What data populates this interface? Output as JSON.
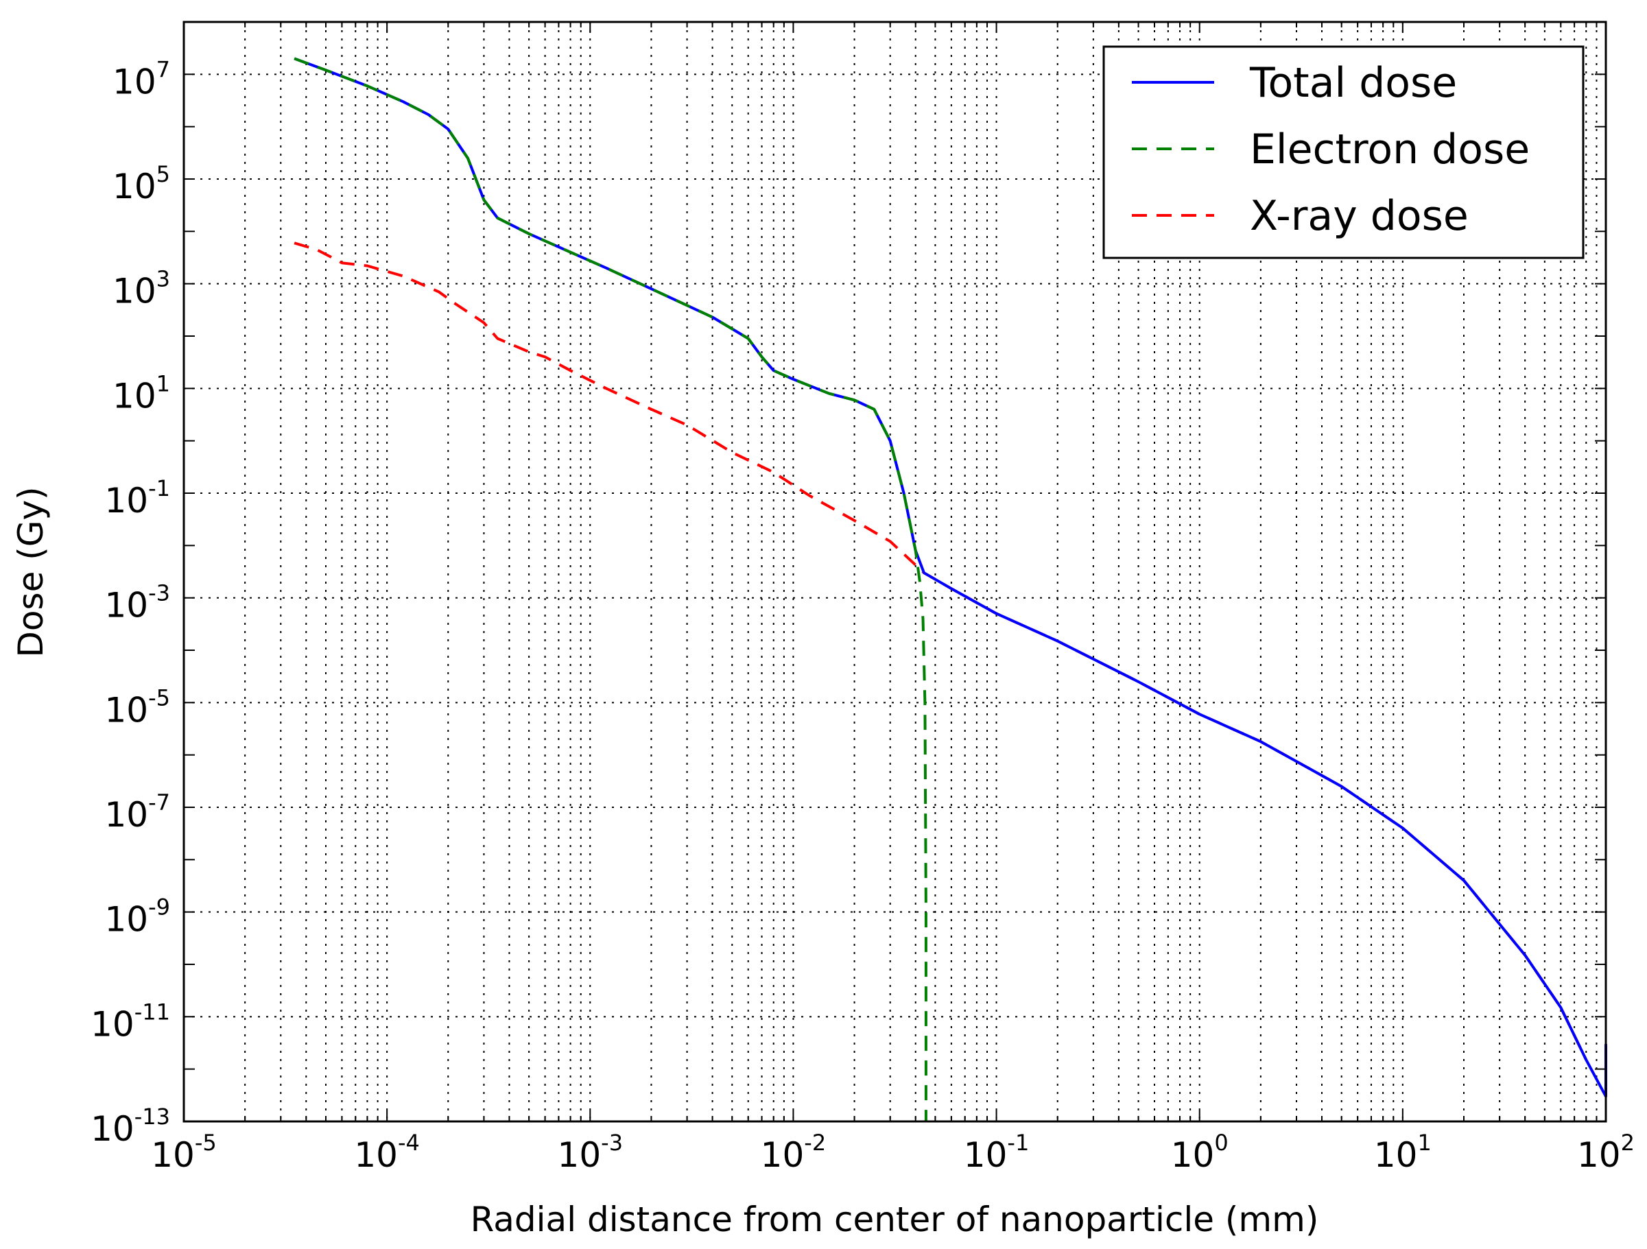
{
  "chart_data": {
    "type": "line",
    "title": "",
    "xlabel": "Radial distance from center of nanoparticle (mm)",
    "ylabel": "Dose (Gy)",
    "xscale": "log",
    "yscale": "log",
    "xlim": [
      1e-05,
      100
    ],
    "ylim": [
      1e-13,
      100000000.0
    ],
    "grid": true,
    "legend_position": "top-right",
    "x_ticks": [
      {
        "base": "10",
        "exp": "-5",
        "value": 1e-05
      },
      {
        "base": "10",
        "exp": "-4",
        "value": 0.0001
      },
      {
        "base": "10",
        "exp": "-3",
        "value": 0.001
      },
      {
        "base": "10",
        "exp": "-2",
        "value": 0.01
      },
      {
        "base": "10",
        "exp": "-1",
        "value": 0.1
      },
      {
        "base": "10",
        "exp": "0",
        "value": 1
      },
      {
        "base": "10",
        "exp": "1",
        "value": 10
      },
      {
        "base": "10",
        "exp": "2",
        "value": 100
      }
    ],
    "y_ticks": [
      {
        "base": "10",
        "exp": "7",
        "value": 10000000.0
      },
      {
        "base": "10",
        "exp": "5",
        "value": 100000.0
      },
      {
        "base": "10",
        "exp": "3",
        "value": 1000.0
      },
      {
        "base": "10",
        "exp": "1",
        "value": 10.0
      },
      {
        "base": "10",
        "exp": "-1",
        "value": 0.1
      },
      {
        "base": "10",
        "exp": "-3",
        "value": 0.001
      },
      {
        "base": "10",
        "exp": "-5",
        "value": 1e-05
      },
      {
        "base": "10",
        "exp": "-7",
        "value": 1e-07
      },
      {
        "base": "10",
        "exp": "-9",
        "value": 1e-09
      },
      {
        "base": "10",
        "exp": "-11",
        "value": 1e-11
      },
      {
        "base": "10",
        "exp": "-13",
        "value": 1e-13
      }
    ],
    "series": [
      {
        "name": "Total dose",
        "color": "#0000ff",
        "style": "solid",
        "points": [
          [
            3.5e-05,
            20000000.0
          ],
          [
            5e-05,
            12000000.0
          ],
          [
            8e-05,
            6000000.0
          ],
          [
            0.00012,
            3000000.0
          ],
          [
            0.00016,
            1700000.0
          ],
          [
            0.0002,
            900000.0
          ],
          [
            0.00025,
            250000.0
          ],
          [
            0.0003,
            40000.0
          ],
          [
            0.00035,
            18000.0
          ],
          [
            0.0005,
            9000.0
          ],
          [
            0.0008,
            4000.0
          ],
          [
            0.0012,
            2000.0
          ],
          [
            0.002,
            800.0
          ],
          [
            0.004,
            230.0
          ],
          [
            0.006,
            90.0
          ],
          [
            0.007,
            40.0
          ],
          [
            0.008,
            22.0
          ],
          [
            0.01,
            15.0
          ],
          [
            0.015,
            8
          ],
          [
            0.02,
            6
          ],
          [
            0.025,
            4
          ],
          [
            0.03,
            1
          ],
          [
            0.035,
            0.1
          ],
          [
            0.04,
            0.008
          ],
          [
            0.044,
            0.003
          ],
          [
            0.06,
            0.0015
          ],
          [
            0.1,
            0.0005
          ],
          [
            0.2,
            0.00015
          ],
          [
            0.5,
            2.5e-05
          ],
          [
            1,
            6e-06
          ],
          [
            2,
            1.8e-06
          ],
          [
            5,
            2.5e-07
          ],
          [
            10,
            4e-08
          ],
          [
            20,
            4e-09
          ],
          [
            40,
            1.5e-10
          ],
          [
            60,
            1.5e-11
          ],
          [
            80,
            1.5e-12
          ],
          [
            100,
            3e-13
          ],
          [
            100,
            3e-12
          ]
        ]
      },
      {
        "name": "Electron dose",
        "color": "#008000",
        "style": "dashed",
        "points": [
          [
            3.5e-05,
            20000000.0
          ],
          [
            5e-05,
            12000000.0
          ],
          [
            8e-05,
            6000000.0
          ],
          [
            0.00012,
            3000000.0
          ],
          [
            0.00016,
            1700000.0
          ],
          [
            0.0002,
            900000.0
          ],
          [
            0.00025,
            250000.0
          ],
          [
            0.0003,
            40000.0
          ],
          [
            0.00035,
            18000.0
          ],
          [
            0.0005,
            9000.0
          ],
          [
            0.0008,
            4000.0
          ],
          [
            0.0012,
            2000.0
          ],
          [
            0.002,
            800.0
          ],
          [
            0.004,
            230.0
          ],
          [
            0.006,
            90.0
          ],
          [
            0.007,
            40.0
          ],
          [
            0.008,
            22.0
          ],
          [
            0.01,
            15.0
          ],
          [
            0.015,
            8
          ],
          [
            0.02,
            6
          ],
          [
            0.025,
            4
          ],
          [
            0.03,
            1
          ],
          [
            0.035,
            0.1
          ],
          [
            0.04,
            0.008
          ],
          [
            0.042,
            0.002
          ],
          [
            0.0435,
            0.0004
          ],
          [
            0.0445,
            1e-05
          ],
          [
            0.045,
            1e-09
          ],
          [
            0.045,
            1e-13
          ]
        ]
      },
      {
        "name": "X-ray dose",
        "color": "#ff0000",
        "style": "dashed",
        "points": [
          [
            3.5e-05,
            6000.0
          ],
          [
            4.5e-05,
            4500.0
          ],
          [
            5.5e-05,
            3000.0
          ],
          [
            6e-05,
            2500.0
          ],
          [
            8e-05,
            2200.0
          ],
          [
            0.00012,
            1400.0
          ],
          [
            0.00018,
            700.0
          ],
          [
            0.00022,
            400.0
          ],
          [
            0.0003,
            180.0
          ],
          [
            0.00035,
            90.0
          ],
          [
            0.0005,
            50.0
          ],
          [
            0.0006,
            40.0
          ],
          [
            0.0008,
            22.0
          ],
          [
            0.0012,
            10.0
          ],
          [
            0.002,
            4
          ],
          [
            0.003,
            2
          ],
          [
            0.005,
            0.6
          ],
          [
            0.008,
            0.25
          ],
          [
            0.012,
            0.09
          ],
          [
            0.02,
            0.03
          ],
          [
            0.03,
            0.012
          ],
          [
            0.044,
            0.003
          ],
          [
            0.06,
            0.0015
          ],
          [
            0.1,
            0.0005
          ],
          [
            0.2,
            0.00015
          ],
          [
            0.5,
            2.5e-05
          ],
          [
            1,
            6e-06
          ],
          [
            2,
            1.8e-06
          ],
          [
            5,
            2.5e-07
          ],
          [
            10,
            4e-08
          ],
          [
            20,
            4e-09
          ],
          [
            40,
            1.5e-10
          ],
          [
            60,
            1.5e-11
          ],
          [
            80,
            1.5e-12
          ]
        ]
      }
    ]
  }
}
